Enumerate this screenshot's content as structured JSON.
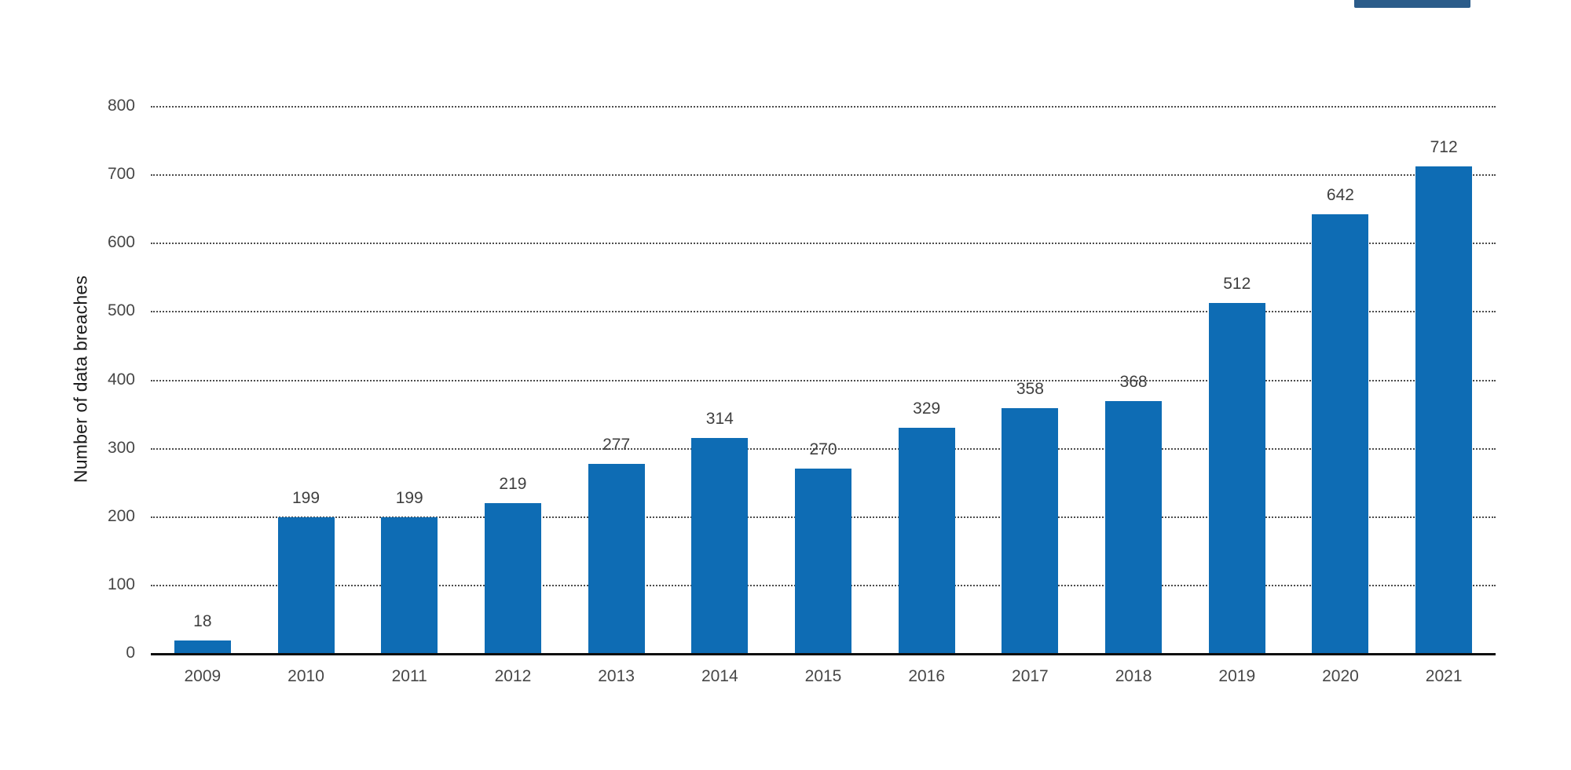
{
  "chart_data": {
    "type": "bar",
    "categories": [
      "2009",
      "2010",
      "2011",
      "2012",
      "2013",
      "2014",
      "2015",
      "2016",
      "2017",
      "2018",
      "2019",
      "2020",
      "2021"
    ],
    "values": [
      18,
      199,
      199,
      219,
      277,
      314,
      270,
      329,
      358,
      368,
      512,
      642,
      712
    ],
    "title": "",
    "xlabel": "",
    "ylabel": "Number of data breaches",
    "ylim": [
      0,
      800
    ],
    "ytick_step": 100,
    "grid": "dotted-horizontal",
    "legend": "none",
    "bar_color": "#0e6cb4",
    "value_label_color": "#404040",
    "tick_label_color": "#474747",
    "axis_color": "#0d0d0d"
  },
  "decor": {
    "logo_fragment_color": "#2b5c8a"
  }
}
